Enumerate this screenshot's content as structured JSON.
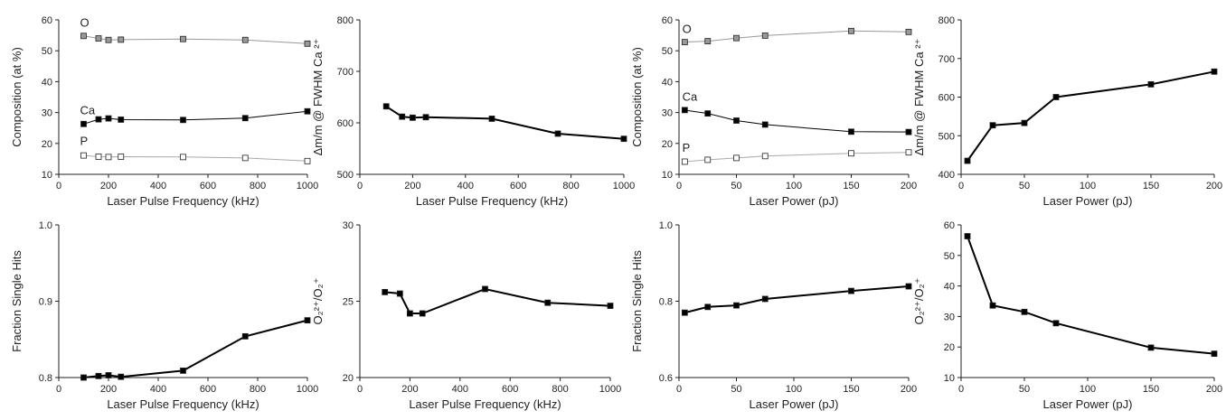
{
  "chart_data": [
    {
      "type": "line",
      "xlabel": "Laser Pulse Frequency (kHz)",
      "ylabel": "Composition (at %)",
      "xlim": [
        0,
        1000
      ],
      "ylim": [
        10,
        60
      ],
      "xticks": [
        0,
        200,
        400,
        600,
        800,
        1000
      ],
      "yticks": [
        10,
        20,
        30,
        40,
        50,
        60
      ],
      "x": [
        100,
        160,
        200,
        250,
        500,
        750,
        1000
      ],
      "series": [
        {
          "name": "O",
          "values": [
            54.8,
            54.0,
            53.5,
            53.6,
            53.8,
            53.5,
            52.3
          ],
          "line_color": "#999999",
          "marker": "square",
          "marker_fill": "#999999",
          "line_width": 1
        },
        {
          "name": "Ca",
          "values": [
            26.3,
            27.8,
            28.1,
            27.7,
            27.6,
            28.2,
            30.4
          ],
          "line_color": "#000000",
          "marker": "square",
          "marker_fill": "#000000",
          "line_width": 1
        },
        {
          "name": "P",
          "values": [
            16.1,
            15.7,
            15.6,
            15.7,
            15.6,
            15.3,
            14.3
          ],
          "line_color": "#aaaaaa",
          "marker": "square",
          "marker_fill": "#ffffff",
          "line_width": 1
        }
      ],
      "series_labels": [
        {
          "text": "O",
          "x": 100,
          "y": 57.8
        },
        {
          "text": "Ca",
          "x": 100,
          "y": 29.5
        },
        {
          "text": "P",
          "x": 100,
          "y": 19.5
        }
      ]
    },
    {
      "type": "line",
      "xlabel": "Laser Pulse Frequency (kHz)",
      "ylabel": "Δm/m @ FWHM Ca ²⁺",
      "xlim": [
        0,
        1000
      ],
      "ylim": [
        500,
        800
      ],
      "xticks": [
        0,
        200,
        400,
        600,
        800,
        1000
      ],
      "yticks": [
        500,
        600,
        700,
        800
      ],
      "x": [
        100,
        160,
        200,
        250,
        500,
        750,
        1000
      ],
      "series": [
        {
          "values": [
            632,
            612,
            610,
            611,
            608,
            579,
            569
          ],
          "line_color": "#000000",
          "marker": "square",
          "marker_fill": "#000000",
          "line_width": 2
        }
      ]
    },
    {
      "type": "line",
      "xlabel": "Laser Power (pJ)",
      "ylabel": "Composition (at %)",
      "xlim": [
        0,
        200
      ],
      "ylim": [
        10,
        60
      ],
      "xticks": [
        0,
        50,
        100,
        150,
        200
      ],
      "yticks": [
        10,
        20,
        30,
        40,
        50,
        60
      ],
      "x": [
        5,
        25,
        50,
        75,
        150,
        200
      ],
      "series": [
        {
          "name": "O",
          "values": [
            52.8,
            53.1,
            54.1,
            54.9,
            56.4,
            56.1
          ],
          "line_color": "#999999",
          "marker": "square",
          "marker_fill": "#999999",
          "line_width": 1
        },
        {
          "name": "Ca",
          "values": [
            30.8,
            29.7,
            27.4,
            26.1,
            23.8,
            23.7
          ],
          "line_color": "#000000",
          "marker": "square",
          "marker_fill": "#000000",
          "line_width": 1
        },
        {
          "name": "P",
          "values": [
            14.1,
            14.7,
            15.3,
            15.9,
            16.8,
            17.1
          ],
          "line_color": "#aaaaaa",
          "marker": "square",
          "marker_fill": "#ffffff",
          "line_width": 1
        }
      ],
      "series_labels": [
        {
          "text": "O",
          "x": 6,
          "y": 55.8
        },
        {
          "text": "Ca",
          "x": 6,
          "y": 33.8
        },
        {
          "text": "P",
          "x": 6,
          "y": 17.3
        }
      ]
    },
    {
      "type": "line",
      "xlabel": "Laser Power (pJ)",
      "ylabel": "Δm/m @ FWHM Ca ²⁺",
      "xlim": [
        0,
        200
      ],
      "ylim": [
        400,
        800
      ],
      "xticks": [
        0,
        50,
        100,
        150,
        200
      ],
      "yticks": [
        400,
        500,
        600,
        700,
        800
      ],
      "x": [
        5,
        25,
        50,
        75,
        150,
        200
      ],
      "series": [
        {
          "values": [
            435,
            527,
            533,
            600,
            633,
            666
          ],
          "line_color": "#000000",
          "marker": "square",
          "marker_fill": "#000000",
          "line_width": 2
        }
      ]
    },
    {
      "type": "line",
      "xlabel": "Laser Pulse Frequency (kHz)",
      "ylabel": "Fraction Single Hits",
      "xlim": [
        0,
        1000
      ],
      "ylim": [
        0.8,
        1.0
      ],
      "xticks": [
        0,
        200,
        400,
        600,
        800,
        1000
      ],
      "yticks": [
        0.8,
        0.9,
        1.0
      ],
      "ytick_labels": [
        "0.8",
        "0.9",
        "1.0"
      ],
      "x": [
        100,
        160,
        200,
        250,
        500,
        750,
        1000
      ],
      "series": [
        {
          "values": [
            0.8,
            0.802,
            0.803,
            0.801,
            0.809,
            0.854,
            0.875
          ],
          "line_color": "#000000",
          "marker": "square",
          "marker_fill": "#000000",
          "line_width": 2
        }
      ]
    },
    {
      "type": "line",
      "xlabel": "Laser Pulse Frequency (kHz)",
      "ylabel": "O₂²⁺/O₂⁺",
      "xlim": [
        0,
        1000
      ],
      "ylim": [
        20,
        30
      ],
      "xticks": [
        0,
        200,
        400,
        600,
        800,
        1000
      ],
      "yticks": [
        20,
        25,
        30
      ],
      "x": [
        100,
        160,
        200,
        250,
        500,
        750,
        1000
      ],
      "series": [
        {
          "values": [
            25.6,
            25.5,
            24.2,
            24.2,
            25.8,
            24.9,
            24.7
          ],
          "line_color": "#000000",
          "marker": "square",
          "marker_fill": "#000000",
          "line_width": 2
        }
      ]
    },
    {
      "type": "line",
      "xlabel": "Laser Power (pJ)",
      "ylabel": "Fraction Single Hits",
      "xlim": [
        0,
        200
      ],
      "ylim": [
        0.6,
        1.0
      ],
      "xticks": [
        0,
        50,
        100,
        150,
        200
      ],
      "yticks": [
        0.6,
        0.8,
        1.0
      ],
      "ytick_labels": [
        "0.6",
        "0.8",
        "1.0"
      ],
      "x": [
        5,
        25,
        50,
        75,
        150,
        200
      ],
      "series": [
        {
          "values": [
            0.77,
            0.785,
            0.789,
            0.806,
            0.827,
            0.839
          ],
          "line_color": "#000000",
          "marker": "square",
          "marker_fill": "#000000",
          "line_width": 2
        }
      ]
    },
    {
      "type": "line",
      "xlabel": "Laser Power (pJ)",
      "ylabel": "O₂²⁺/O₂⁺",
      "xlim": [
        0,
        200
      ],
      "ylim": [
        10,
        60
      ],
      "xticks": [
        0,
        50,
        100,
        150,
        200
      ],
      "yticks": [
        10,
        20,
        30,
        40,
        50,
        60
      ],
      "x": [
        5,
        25,
        50,
        75,
        150,
        200
      ],
      "series": [
        {
          "values": [
            56.3,
            33.6,
            31.5,
            27.8,
            19.8,
            17.8
          ],
          "line_color": "#000000",
          "marker": "square",
          "marker_fill": "#000000",
          "line_width": 2
        }
      ]
    }
  ]
}
